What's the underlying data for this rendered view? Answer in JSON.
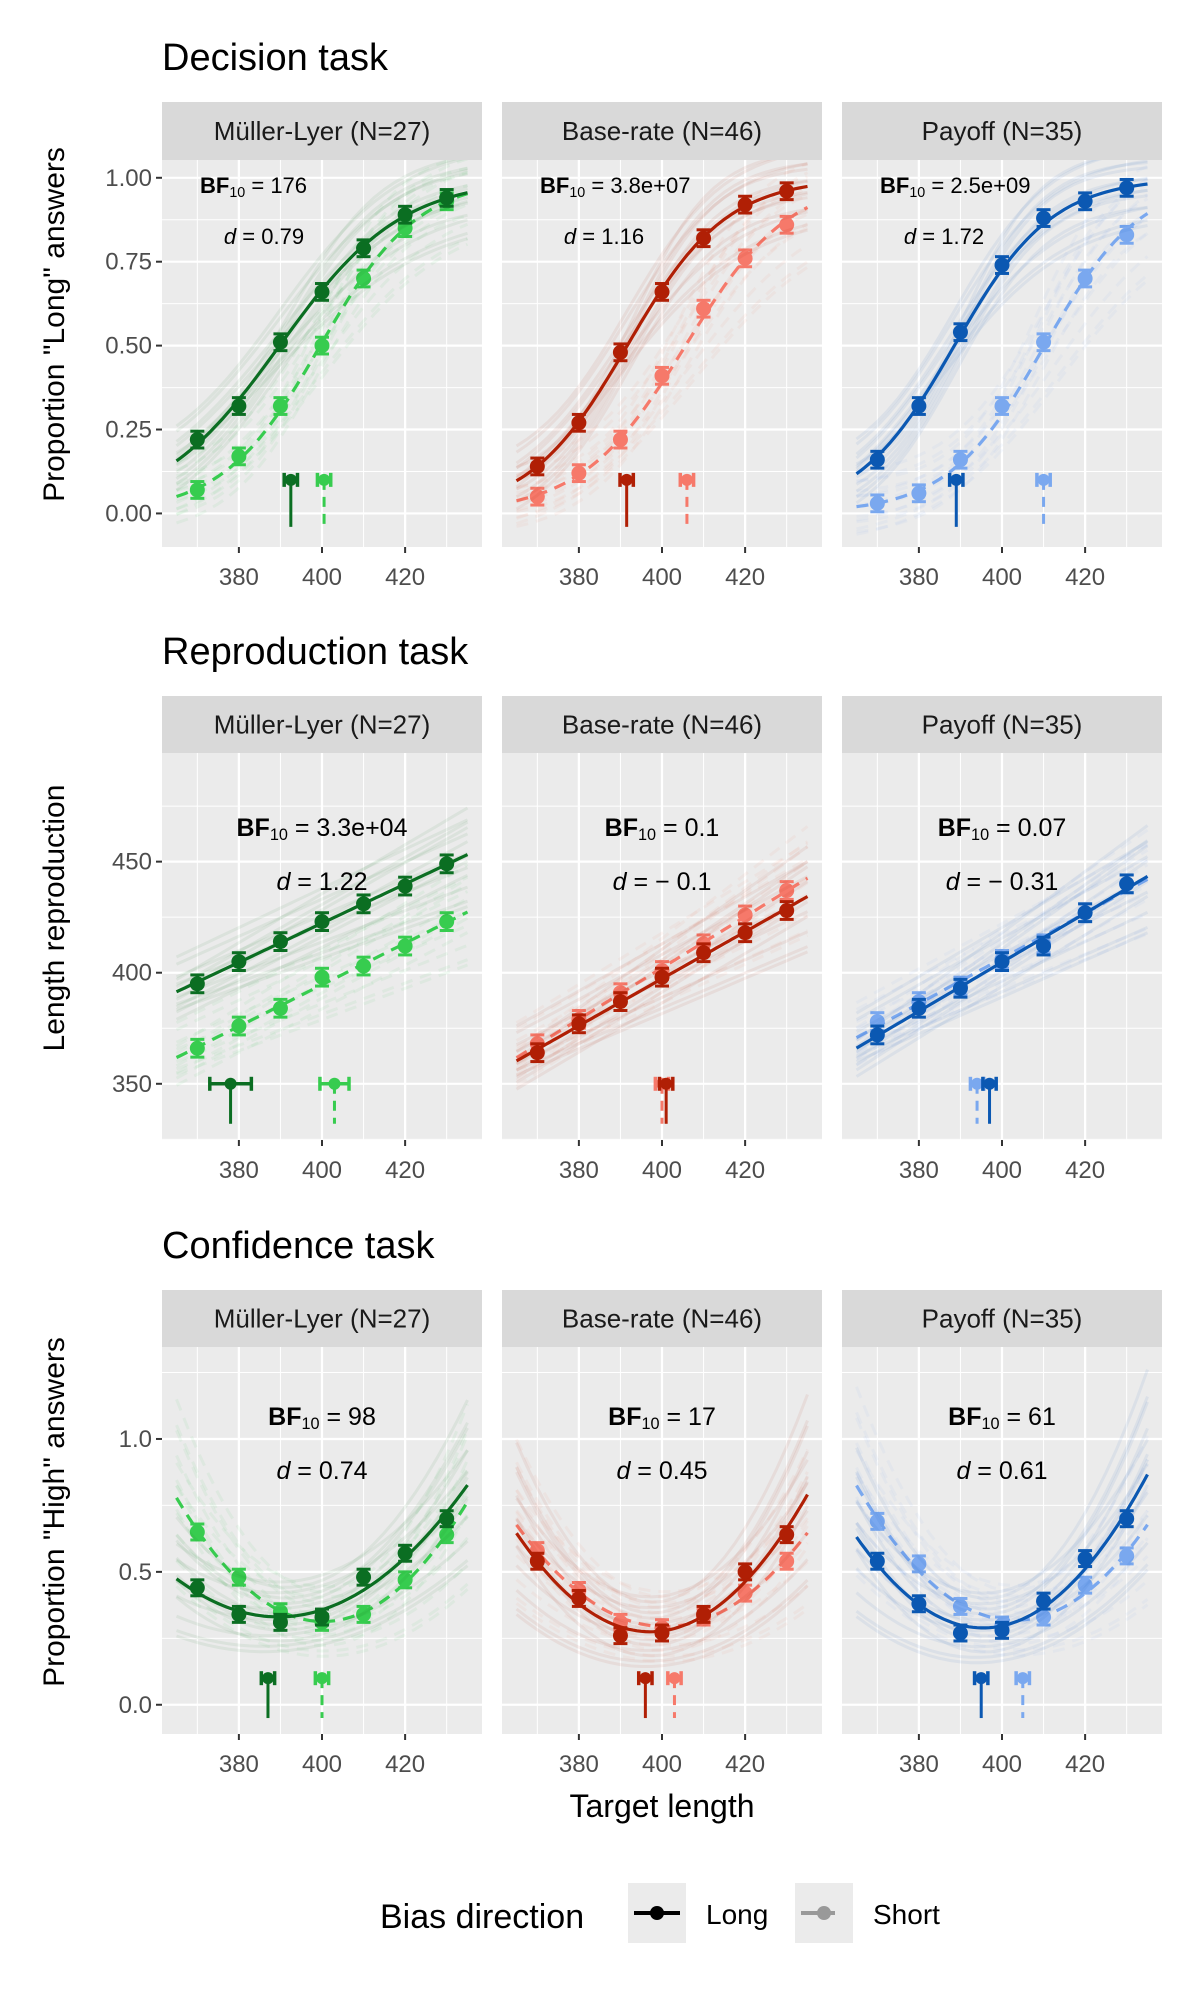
{
  "chart_data": {
    "type": "line",
    "xlabel": "Target length",
    "x": [
      370,
      380,
      390,
      400,
      410,
      420,
      430
    ],
    "x_ticks": [
      380,
      400,
      420
    ],
    "xlim": [
      361.5,
      438.5
    ],
    "grid": true,
    "legend": {
      "title": "Bias direction",
      "placement": "bottom",
      "entries": [
        {
          "label": "Long",
          "linetype": "solid",
          "color": "#000000"
        },
        {
          "label": "Short",
          "linetype": "dashed",
          "color": "#999999"
        }
      ]
    },
    "facet_colors": {
      "Müller-Lyer": {
        "Long": "#0b6e22",
        "Short": "#37cc4f"
      },
      "Base-rate": {
        "Long": "#b01f05",
        "Short": "#f6796a"
      },
      "Payoff": {
        "Long": "#0b58b2",
        "Short": "#7aa8ef"
      }
    },
    "rows": [
      {
        "title": "Decision task",
        "ylabel": "Proportion \"Long\" answers",
        "ylim": [
          -0.1,
          1.053
        ],
        "y_ticks": [
          0,
          0.25,
          0.5,
          0.75,
          1.0
        ],
        "y_tick_labels": [
          "0.00",
          "0.25",
          "0.50",
          "0.75",
          "1.00"
        ],
        "fit": "logistic",
        "error": 0.025,
        "pse_level": 0.1,
        "pse_drop_to": -0.04,
        "annot_align": "left",
        "panels": [
          {
            "facet": "Müller-Lyer",
            "strip": "Müller-Lyer (N=27)",
            "bf": "176",
            "d": "0.79",
            "long": [
              0.22,
              0.32,
              0.51,
              0.66,
              0.79,
              0.89,
              0.94
            ],
            "short": [
              0.07,
              0.17,
              0.32,
              0.5,
              0.7,
              0.85,
              0.93
            ],
            "pse_long": 392.5,
            "pse_short": 400.5
          },
          {
            "facet": "Base-rate",
            "strip": "Base-rate (N=46)",
            "bf": "3.8e+07",
            "d": "1.16",
            "long": [
              0.14,
              0.27,
              0.48,
              0.66,
              0.82,
              0.92,
              0.96
            ],
            "short": [
              0.05,
              0.12,
              0.22,
              0.41,
              0.61,
              0.76,
              0.86
            ],
            "pse_long": 391.5,
            "pse_short": 406
          },
          {
            "facet": "Payoff",
            "strip": "Payoff (N=35)",
            "bf": "2.5e+09",
            "d": "1.72",
            "long": [
              0.16,
              0.32,
              0.54,
              0.74,
              0.88,
              0.93,
              0.97
            ],
            "short": [
              0.03,
              0.06,
              0.16,
              0.32,
              0.51,
              0.7,
              0.83
            ],
            "pse_long": 389,
            "pse_short": 410
          }
        ]
      },
      {
        "title": "Reproduction task",
        "ylabel": "Length reproduction",
        "ylim": [
          324.7,
          498.9
        ],
        "y_ticks": [
          350,
          400,
          450
        ],
        "y_tick_labels": [
          "350",
          "400",
          "450"
        ],
        "fit": "linear",
        "error": 4,
        "pse_level": 350,
        "pse_drop_to": 332,
        "annot_align": "center",
        "panels": [
          {
            "facet": "Müller-Lyer",
            "strip": "Müller-Lyer (N=27)",
            "bf": "3.3e+04",
            "d": "1.22",
            "long": [
              395,
              405,
              414,
              423,
              431,
              439,
              449
            ],
            "short": [
              366,
              376,
              384,
              398,
              403,
              412,
              423
            ],
            "pse_long": 378,
            "pse_short": 403,
            "pse_err_long": 5,
            "pse_err_short": 3.5
          },
          {
            "facet": "Base-rate",
            "strip": "Base-rate (N=46)",
            "bf": "0.1",
            "d": "− 0.1",
            "long": [
              364,
              377,
              387,
              398,
              409,
              418,
              428
            ],
            "short": [
              368,
              379,
              391,
              401,
              413,
              426,
              437
            ],
            "pse_long": 401,
            "pse_short": 400
          },
          {
            "facet": "Payoff",
            "strip": "Payoff (N=35)",
            "bf": "0.07",
            "d": "− 0.31",
            "long": [
              372,
              384,
              393,
              405,
              412,
              427,
              440
            ],
            "short": [
              378,
              387,
              394,
              406,
              413,
              427,
              440
            ],
            "pse_long": 397,
            "pse_short": 394
          }
        ]
      },
      {
        "title": "Confidence task",
        "ylabel": "Proportion \"High\" answers",
        "ylim": [
          -0.11,
          1.346
        ],
        "y_ticks": [
          0,
          0.5,
          1.0
        ],
        "y_tick_labels": [
          "0.0",
          "0.5",
          "1.0"
        ],
        "fit": "quadratic",
        "error": 0.03,
        "pse_level": 0.1,
        "pse_drop_to": -0.05,
        "annot_align": "center",
        "panels": [
          {
            "facet": "Müller-Lyer",
            "strip": "Müller-Lyer (N=27)",
            "bf": "98",
            "d": "0.74",
            "long": [
              0.44,
              0.34,
              0.31,
              0.33,
              0.48,
              0.57,
              0.7
            ],
            "short": [
              0.65,
              0.48,
              0.35,
              0.31,
              0.34,
              0.47,
              0.64
            ],
            "pse_long": 387,
            "pse_short": 400
          },
          {
            "facet": "Base-rate",
            "strip": "Base-rate (N=46)",
            "bf": "17",
            "d": "0.45",
            "long": [
              0.54,
              0.4,
              0.26,
              0.27,
              0.34,
              0.5,
              0.64
            ],
            "short": [
              0.58,
              0.43,
              0.31,
              0.29,
              0.33,
              0.42,
              0.54
            ],
            "pse_long": 396,
            "pse_short": 403
          },
          {
            "facet": "Payoff",
            "strip": "Payoff (N=35)",
            "bf": "61",
            "d": "0.61",
            "long": [
              0.54,
              0.38,
              0.27,
              0.28,
              0.39,
              0.55,
              0.7
            ],
            "short": [
              0.69,
              0.53,
              0.37,
              0.3,
              0.33,
              0.45,
              0.56
            ],
            "pse_long": 395,
            "pse_short": 405
          }
        ]
      }
    ]
  }
}
